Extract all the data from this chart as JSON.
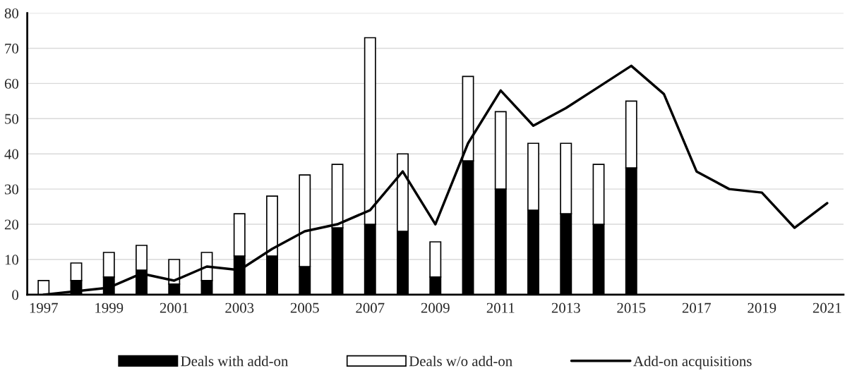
{
  "chart_data": {
    "type": "bar",
    "stacked": true,
    "categories": [
      "1997",
      null,
      "1999",
      null,
      "2001",
      null,
      "2003",
      null,
      "2005",
      null,
      "2007",
      null,
      "2009",
      null,
      "2011",
      null,
      "2013",
      null,
      "2015",
      null,
      "2017",
      null,
      "2019",
      null,
      "2021"
    ],
    "series": [
      {
        "name": "Deals with add-on",
        "color": "#000000",
        "values": [
          0,
          4,
          5,
          7,
          3,
          4,
          11,
          11,
          8,
          19,
          20,
          18,
          5,
          38,
          30,
          24,
          23,
          20,
          36,
          null,
          null,
          null,
          null,
          null,
          null
        ]
      },
      {
        "name": "Deals w/o add-on",
        "color": "#ffffff",
        "values": [
          4,
          5,
          7,
          7,
          7,
          8,
          12,
          17,
          26,
          18,
          53,
          22,
          10,
          24,
          22,
          19,
          20,
          17,
          19,
          null,
          null,
          null,
          null,
          null,
          null
        ]
      },
      {
        "name": "Add-on acquisitions",
        "type": "line",
        "color": "#000000",
        "values": [
          0,
          1,
          2,
          6,
          4,
          8,
          7,
          13,
          18,
          20,
          24,
          35,
          20,
          43,
          58,
          48,
          53,
          59,
          65,
          57,
          35,
          30,
          29,
          19,
          26
        ]
      }
    ],
    "ylim": [
      0,
      80
    ],
    "yticks": [
      0,
      10,
      20,
      30,
      40,
      50,
      60,
      70,
      80
    ],
    "grid": "y",
    "legend": "bottom"
  }
}
